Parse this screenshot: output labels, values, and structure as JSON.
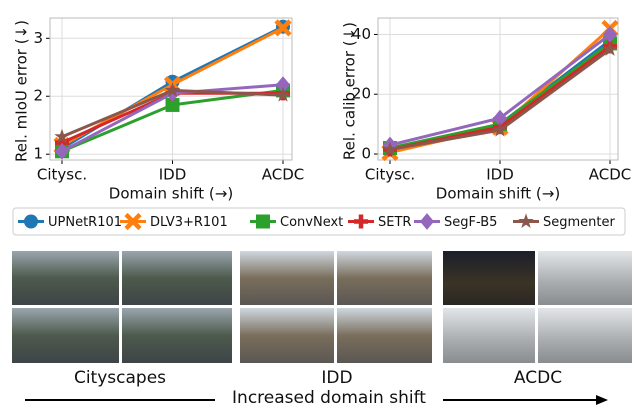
{
  "chart_data": [
    {
      "type": "line",
      "ylabel": "Rel. mIoU error (↓)",
      "xlabel": "Domain shift (→)",
      "categories": [
        "Citysc.",
        "IDD",
        "ACDC"
      ],
      "ylim": [
        0.9,
        3.35
      ],
      "yticks": [
        1,
        2,
        3
      ],
      "grid": true,
      "series": [
        {
          "name": "UPNetR101",
          "color": "#1f77b4",
          "marker": "circle",
          "values": [
            1.1,
            2.25,
            3.2
          ]
        },
        {
          "name": "DLV3+R101",
          "color": "#ff7f0e",
          "marker": "x",
          "values": [
            1.15,
            2.2,
            3.18
          ]
        },
        {
          "name": "ConvNext",
          "color": "#2ca02c",
          "marker": "square",
          "values": [
            1.05,
            1.85,
            2.1
          ]
        },
        {
          "name": "SETR",
          "color": "#d62728",
          "marker": "plus",
          "values": [
            1.2,
            2.05,
            2.05
          ]
        },
        {
          "name": "SegF-B5",
          "color": "#9467bd",
          "marker": "diamond",
          "values": [
            1.05,
            2.05,
            2.2
          ]
        },
        {
          "name": "Segmenter",
          "color": "#8c564b",
          "marker": "star",
          "values": [
            1.3,
            2.1,
            2.02
          ]
        }
      ]
    },
    {
      "type": "line",
      "ylabel": "Rel. calib error (↓)",
      "xlabel": "Domain shift (→)",
      "categories": [
        "Citysc.",
        "IDD",
        "ACDC"
      ],
      "ylim": [
        -2,
        45.5
      ],
      "yticks": [
        0,
        20,
        40
      ],
      "grid": true,
      "series": [
        {
          "name": "UPNetR101",
          "color": "#1f77b4",
          "marker": "circle",
          "values": [
            1.5,
            10,
            38
          ]
        },
        {
          "name": "DLV3+R101",
          "color": "#ff7f0e",
          "marker": "x",
          "values": [
            0.5,
            9,
            42
          ]
        },
        {
          "name": "ConvNext",
          "color": "#2ca02c",
          "marker": "square",
          "values": [
            2,
            10,
            37
          ]
        },
        {
          "name": "SETR",
          "color": "#d62728",
          "marker": "plus",
          "values": [
            1.5,
            9,
            36
          ]
        },
        {
          "name": "SegF-B5",
          "color": "#9467bd",
          "marker": "diamond",
          "values": [
            3,
            12,
            40
          ]
        },
        {
          "name": "Segmenter",
          "color": "#8c564b",
          "marker": "star",
          "values": [
            1.5,
            8,
            35
          ]
        }
      ]
    }
  ],
  "figure": {
    "datasets": [
      "Cityscapes",
      "IDD",
      "ACDC"
    ],
    "caption": "Increased domain shift"
  }
}
